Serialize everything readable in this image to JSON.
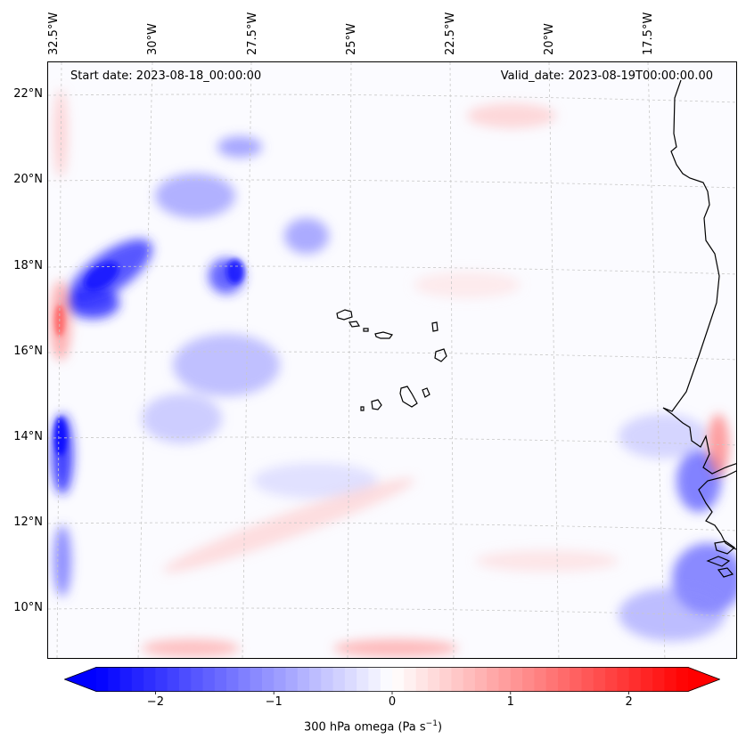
{
  "annotations": {
    "start_date": "Start date: 2023-08-18_00:00:00",
    "valid_date": "Valid_date: 2023-08-19T00:00:00.00"
  },
  "longitude_labels": [
    "32.5°W",
    "30°W",
    "27.5°W",
    "25°W",
    "22.5°W",
    "20°W",
    "17.5°W"
  ],
  "latitude_labels": [
    "22°N",
    "20°N",
    "18°N",
    "16°N",
    "14°N",
    "12°N",
    "10°N"
  ],
  "colorbar": {
    "min": -2.5,
    "max": 2.5,
    "ticks": [
      "−2",
      "−1",
      "0",
      "1",
      "2"
    ],
    "tick_values": [
      -2,
      -1,
      0,
      1,
      2
    ],
    "label_text": "300 hPa omega (Pa s",
    "label_exponent": "−1",
    "label_close": ")",
    "extend": "both",
    "colormap": "bwr",
    "colors": {
      "negative": "#0000ff",
      "zero": "#ffffff",
      "positive": "#ff0000"
    }
  },
  "gridlines": {
    "style": "dashed",
    "color": "#c8c8c8"
  },
  "coastline_color": "#000000"
}
